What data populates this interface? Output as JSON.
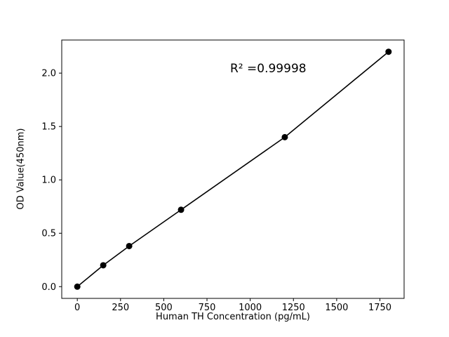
{
  "chart_data": {
    "type": "scatter",
    "x": [
      0,
      150,
      300,
      600,
      1200,
      1800
    ],
    "y": [
      0.0,
      0.2,
      0.38,
      0.72,
      1.4,
      2.2
    ],
    "title": "",
    "xlabel": "Human TH Concentration (pg/mL)",
    "ylabel": "OD Value(450nm)",
    "annotation": "R² =0.99998",
    "xlim": [
      -90,
      1890
    ],
    "ylim": [
      -0.11,
      2.31
    ],
    "xticks": [
      0,
      250,
      500,
      750,
      1000,
      1250,
      1500,
      1750
    ],
    "yticks": [
      0.0,
      0.5,
      1.0,
      1.5,
      2.0
    ],
    "line": true,
    "grid": false,
    "legend_position": "none",
    "line_color": "#000000",
    "marker_color": "#000000",
    "background_color": "#ffffff"
  }
}
